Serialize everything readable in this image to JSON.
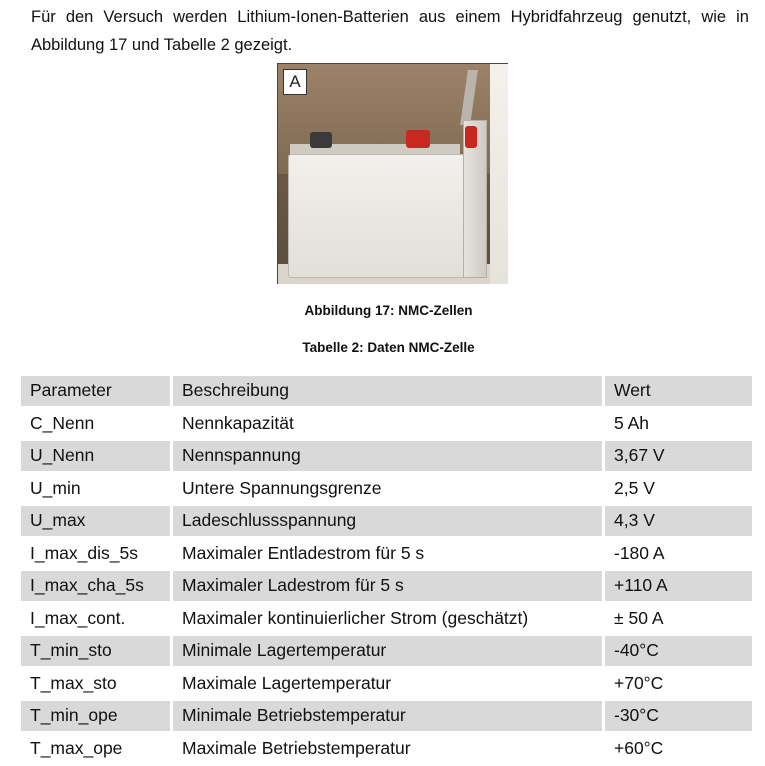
{
  "intro_text": "Für den Versuch werden Lithium-Ionen-Batterien aus einem Hybridfahrzeug genutzt, wie in Abbildung 17 und Tabelle 2 gezeigt.",
  "figure": {
    "panel_label": "A",
    "caption": "Abbildung 17: NMC-Zellen"
  },
  "table": {
    "caption": "Tabelle 2: Daten NMC-Zelle",
    "headers": [
      "Parameter",
      "Beschreibung",
      "Wert"
    ],
    "rows": [
      [
        "C_Nenn",
        "Nennkapazität",
        "5 Ah"
      ],
      [
        "U_Nenn",
        "Nennspannung",
        "3,67 V"
      ],
      [
        "U_min",
        "Untere Spannungsgrenze",
        "2,5 V"
      ],
      [
        "U_max",
        "Ladeschlussspannung",
        "4,3 V"
      ],
      [
        "I_max_dis_5s",
        "Maximaler Entladestrom für 5 s",
        "-180 A"
      ],
      [
        "I_max_cha_5s",
        "Maximaler Ladestrom für 5 s",
        "+110 A"
      ],
      [
        "I_max_cont.",
        "Maximaler kontinuierlicher Strom (geschätzt)",
        "± 50 A"
      ],
      [
        "T_min_sto",
        "Minimale Lagertemperatur",
        "-40°C"
      ],
      [
        "T_max_sto",
        "Maximale Lagertemperatur",
        "+70°C"
      ],
      [
        "T_min_ope",
        "Minimale Betriebstemperatur",
        "-30°C"
      ],
      [
        "T_max_ope",
        "Maximale Betriebstemperatur",
        "+60°C"
      ]
    ]
  }
}
